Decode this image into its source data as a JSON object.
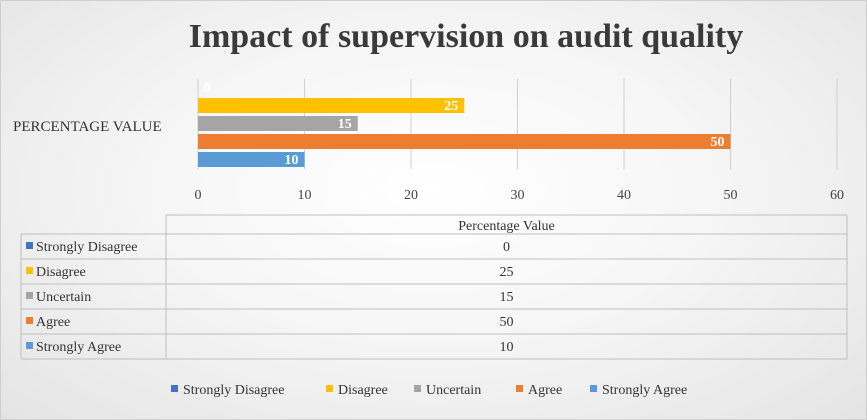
{
  "chart_data": {
    "type": "bar",
    "orientation": "horizontal",
    "title": "Impact of supervision on audit quality",
    "categories": [
      "PERCENTAGE VALUE"
    ],
    "series": [
      {
        "name": "Strongly Disagree",
        "values": [
          0
        ],
        "color": "#4472C4"
      },
      {
        "name": "Disagree",
        "values": [
          25
        ],
        "color": "#FFC000"
      },
      {
        "name": "Uncertain",
        "values": [
          15
        ],
        "color": "#A5A5A5"
      },
      {
        "name": "Agree",
        "values": [
          50
        ],
        "color": "#ED7D31"
      },
      {
        "name": "Strongly Agree",
        "values": [
          10
        ],
        "color": "#5B9BD5"
      }
    ],
    "x_ticks": [
      0,
      10,
      20,
      30,
      40,
      50,
      60
    ],
    "xlim": [
      0,
      60
    ],
    "grid": true,
    "data_labels": true,
    "data_table": {
      "column_header": "Percentage Value"
    },
    "legend_position": "bottom"
  }
}
